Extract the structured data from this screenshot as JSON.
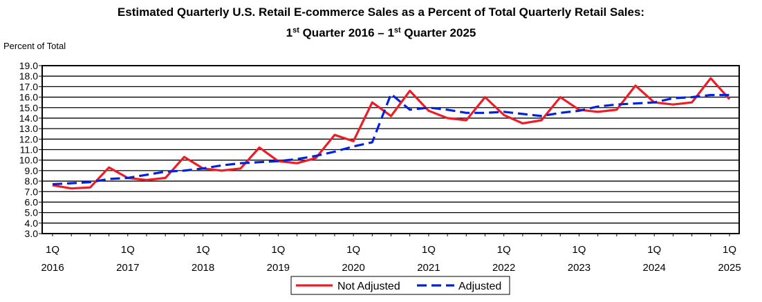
{
  "title": {
    "line1": "Estimated Quarterly U.S. Retail E-commerce Sales as a Percent of Total Quarterly Retail Sales:",
    "q_prefix": "1",
    "q_suffix": "st",
    "q_mid": " Quarter 2016 – ",
    "q_end": " Quarter 2025"
  },
  "colors": {
    "not_adjusted": "#ee1c25",
    "adjusted": "#0022dd",
    "grid": "#000000"
  },
  "chart_data": {
    "type": "line",
    "title": "Estimated Quarterly U.S. Retail E-commerce Sales as a Percent of Total Quarterly Retail Sales: 1st Quarter 2016 – 1st Quarter 2025",
    "ylabel": "Percent of Total",
    "xlabel": "",
    "ylim": [
      3.0,
      19.0
    ],
    "yticks": [
      "3.0",
      "4.0",
      "5.0",
      "6.0",
      "7.0",
      "8.0",
      "9.0",
      "10.0",
      "11.0",
      "12.0",
      "13.0",
      "14.0",
      "15.0",
      "16.0",
      "17.0",
      "18.0",
      "19.0"
    ],
    "xtick_labels": [
      {
        "q": "1Q",
        "year": "2016"
      },
      {
        "q": "1Q",
        "year": "2017"
      },
      {
        "q": "1Q",
        "year": "2018"
      },
      {
        "q": "1Q",
        "year": "2019"
      },
      {
        "q": "1Q",
        "year": "2020"
      },
      {
        "q": "1Q",
        "year": "2021"
      },
      {
        "q": "1Q",
        "year": "2022"
      },
      {
        "q": "1Q",
        "year": "2023"
      },
      {
        "q": "1Q",
        "year": "2024"
      },
      {
        "q": "1Q",
        "year": "2025"
      }
    ],
    "grid": true,
    "legend_position": "bottom-center",
    "series": [
      {
        "name": "Not Adjusted",
        "style": "solid",
        "values": [
          7.6,
          7.3,
          7.4,
          9.3,
          8.3,
          8.1,
          8.3,
          10.3,
          9.2,
          9.0,
          9.2,
          11.2,
          9.9,
          9.7,
          10.2,
          12.4,
          11.8,
          15.5,
          14.2,
          16.6,
          14.7,
          14.0,
          13.8,
          16.0,
          14.3,
          13.5,
          13.8,
          16.0,
          14.8,
          14.6,
          14.8,
          17.1,
          15.5,
          15.3,
          15.5,
          17.8,
          15.8
        ]
      },
      {
        "name": "Adjusted",
        "style": "dashed",
        "values": [
          7.7,
          7.8,
          7.9,
          8.2,
          8.3,
          8.6,
          8.9,
          9.0,
          9.2,
          9.5,
          9.7,
          9.8,
          9.9,
          10.1,
          10.4,
          10.8,
          11.3,
          11.7,
          16.3,
          14.8,
          15.0,
          14.8,
          14.5,
          14.5,
          14.6,
          14.4,
          14.2,
          14.5,
          14.7,
          15.1,
          15.3,
          15.4,
          15.5,
          15.9,
          16.0,
          16.2,
          16.2
        ]
      }
    ]
  }
}
